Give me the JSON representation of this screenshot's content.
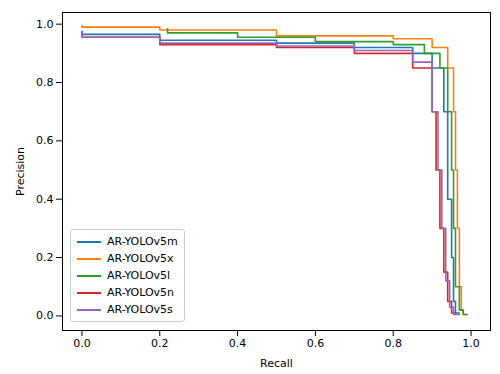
{
  "chart_data": {
    "type": "line",
    "x_label": "Recall",
    "y_label": "Precision",
    "xlim": [
      -0.05,
      1.05
    ],
    "ylim": [
      -0.05,
      1.04
    ],
    "xticks": [
      {
        "value": 0,
        "label": "0.0"
      },
      {
        "value": 0.2,
        "label": "0.2"
      },
      {
        "value": 0.4,
        "label": "0.4"
      },
      {
        "value": 0.6,
        "label": "0.6"
      },
      {
        "value": 0.8,
        "label": "0.8"
      },
      {
        "value": 1,
        "label": "1.0"
      }
    ],
    "yticks": [
      {
        "value": 0,
        "label": "0.0"
      },
      {
        "value": 0.2,
        "label": "0.2"
      },
      {
        "value": 0.4,
        "label": "0.4"
      },
      {
        "value": 0.6,
        "label": "0.6"
      },
      {
        "value": 0.8,
        "label": "0.8"
      },
      {
        "value": 1,
        "label": "1.0"
      }
    ],
    "legend": "lower left",
    "series": [
      {
        "name": "AR-YOLOv5m",
        "color": "#1f77b4",
        "x": [
          0,
          0.2,
          0.5,
          0.7,
          0.85,
          0.9,
          0.93,
          0.94,
          0.95,
          0.955,
          0.96,
          0.97
        ],
        "values": [
          0.975,
          0.965,
          0.945,
          0.935,
          0.92,
          0.9,
          0.85,
          0.7,
          0.4,
          0.2,
          0.05,
          0.01
        ]
      },
      {
        "name": "AR-YOLOv5x",
        "color": "#ff7f0e",
        "x": [
          0,
          0.2,
          0.5,
          0.8,
          0.9,
          0.94,
          0.955,
          0.96,
          0.965,
          0.97,
          0.975,
          0.98,
          0.99
        ],
        "values": [
          0.995,
          0.99,
          0.98,
          0.96,
          0.95,
          0.92,
          0.85,
          0.7,
          0.5,
          0.3,
          0.1,
          0.02,
          0.005
        ]
      },
      {
        "name": "AR-YOLOv5l",
        "color": "#2ca02c",
        "x": [
          0.22,
          0.4,
          0.6,
          0.8,
          0.88,
          0.92,
          0.94,
          0.95,
          0.955,
          0.96,
          0.97,
          0.98,
          0.99
        ],
        "values": [
          0.985,
          0.97,
          0.955,
          0.94,
          0.93,
          0.9,
          0.85,
          0.7,
          0.5,
          0.3,
          0.1,
          0.02,
          0.005
        ]
      },
      {
        "name": "AR-YOLOv5n",
        "color": "#d62728",
        "x": [
          0,
          0.2,
          0.5,
          0.7,
          0.85,
          0.9,
          0.91,
          0.92,
          0.93,
          0.94,
          0.95,
          0.96
        ],
        "values": [
          0.975,
          0.955,
          0.93,
          0.92,
          0.9,
          0.85,
          0.7,
          0.5,
          0.3,
          0.15,
          0.05,
          0.01
        ]
      },
      {
        "name": "AR-YOLOv5s",
        "color": "#9467bd",
        "x": [
          0,
          0.2,
          0.5,
          0.7,
          0.85,
          0.9,
          0.915,
          0.925,
          0.935,
          0.945,
          0.955,
          0.97
        ],
        "values": [
          0.975,
          0.955,
          0.935,
          0.925,
          0.91,
          0.87,
          0.7,
          0.5,
          0.3,
          0.12,
          0.03,
          0.005
        ]
      }
    ]
  }
}
